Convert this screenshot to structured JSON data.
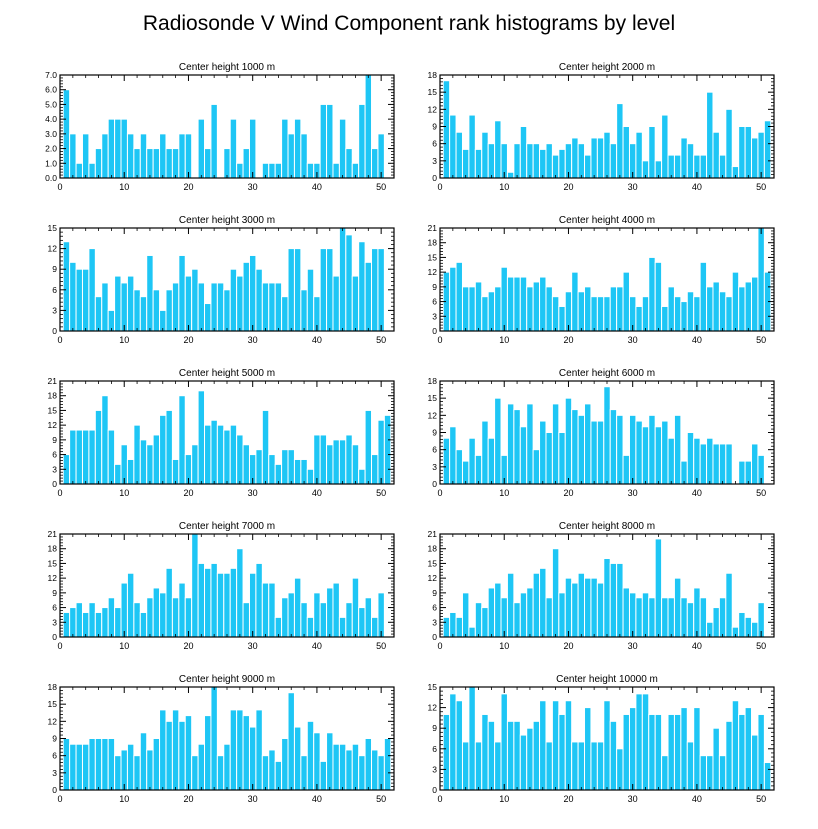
{
  "figure": {
    "title": "Radiosonde V Wind Component rank histograms by level"
  },
  "colors": {
    "bar": "#1ec6f5",
    "bar_edge": "#ffffff",
    "axis": "#000000"
  },
  "chart_data": [
    {
      "type": "bar",
      "title": "Center height 1000 m",
      "xlabel": "",
      "ylabel": "",
      "xlim": [
        0,
        52
      ],
      "ylim": [
        0,
        7
      ],
      "xticks": [
        0,
        10,
        20,
        30,
        40,
        50
      ],
      "yticks": [
        0,
        1,
        2,
        3,
        4,
        5,
        6,
        7
      ],
      "ytick_labels": [
        "0.0",
        "1.0",
        "2.0",
        "3.0",
        "4.0",
        "5.0",
        "6.0",
        "7.0"
      ],
      "categories": [
        1,
        2,
        3,
        4,
        5,
        6,
        7,
        8,
        9,
        10,
        11,
        12,
        13,
        14,
        15,
        16,
        17,
        18,
        19,
        20,
        21,
        22,
        23,
        24,
        25,
        26,
        27,
        28,
        29,
        30,
        31,
        32,
        33,
        34,
        35,
        36,
        37,
        38,
        39,
        40,
        41,
        42,
        43,
        44,
        45,
        46,
        47,
        48,
        49,
        50,
        51
      ],
      "values": [
        6,
        3,
        1,
        3,
        1,
        2,
        3,
        4,
        4,
        4,
        3,
        2,
        3,
        2,
        2,
        3,
        2,
        2,
        3,
        3,
        0,
        4,
        2,
        5,
        0,
        2,
        4,
        1,
        2,
        4,
        0,
        1,
        1,
        1,
        4,
        3,
        4,
        3,
        1,
        1,
        5,
        5,
        1,
        4,
        2,
        1,
        5,
        7,
        2,
        3,
        0
      ]
    },
    {
      "type": "bar",
      "title": "Center height 2000 m",
      "xlabel": "",
      "ylabel": "",
      "xlim": [
        0,
        52
      ],
      "ylim": [
        0,
        18
      ],
      "xticks": [
        0,
        10,
        20,
        30,
        40,
        50
      ],
      "yticks": [
        0,
        3,
        6,
        9,
        12,
        15,
        18
      ],
      "ytick_labels": [
        "0",
        "3",
        "6",
        "9",
        "12",
        "15",
        "18"
      ],
      "categories": [
        1,
        2,
        3,
        4,
        5,
        6,
        7,
        8,
        9,
        10,
        11,
        12,
        13,
        14,
        15,
        16,
        17,
        18,
        19,
        20,
        21,
        22,
        23,
        24,
        25,
        26,
        27,
        28,
        29,
        30,
        31,
        32,
        33,
        34,
        35,
        36,
        37,
        38,
        39,
        40,
        41,
        42,
        43,
        44,
        45,
        46,
        47,
        48,
        49,
        50,
        51
      ],
      "values": [
        17,
        11,
        8,
        5,
        11,
        5,
        8,
        6,
        10,
        6,
        1,
        6,
        9,
        6,
        6,
        5,
        6,
        4,
        5,
        6,
        7,
        6,
        4,
        7,
        7,
        8,
        6,
        13,
        9,
        6,
        8,
        3,
        9,
        3,
        11,
        4,
        4,
        7,
        6,
        4,
        4,
        15,
        8,
        4,
        12,
        2,
        9,
        9,
        7,
        8,
        10
      ]
    },
    {
      "type": "bar",
      "title": "Center height 3000 m",
      "xlabel": "",
      "ylabel": "",
      "xlim": [
        0,
        52
      ],
      "ylim": [
        0,
        15
      ],
      "xticks": [
        0,
        10,
        20,
        30,
        40,
        50
      ],
      "yticks": [
        0,
        3,
        6,
        9,
        12,
        15
      ],
      "ytick_labels": [
        "0",
        "3",
        "6",
        "9",
        "12",
        "15"
      ],
      "categories": [
        1,
        2,
        3,
        4,
        5,
        6,
        7,
        8,
        9,
        10,
        11,
        12,
        13,
        14,
        15,
        16,
        17,
        18,
        19,
        20,
        21,
        22,
        23,
        24,
        25,
        26,
        27,
        28,
        29,
        30,
        31,
        32,
        33,
        34,
        35,
        36,
        37,
        38,
        39,
        40,
        41,
        42,
        43,
        44,
        45,
        46,
        47,
        48,
        49,
        50,
        51
      ],
      "values": [
        13,
        10,
        9,
        9,
        12,
        5,
        7,
        3,
        8,
        7,
        8,
        6,
        5,
        11,
        6,
        3,
        6,
        7,
        11,
        8,
        9,
        7,
        4,
        7,
        7,
        6,
        9,
        8,
        10,
        11,
        9,
        7,
        7,
        7,
        5,
        12,
        12,
        6,
        9,
        5,
        12,
        12,
        8,
        15,
        14,
        8,
        13,
        10,
        12,
        12,
        0
      ]
    },
    {
      "type": "bar",
      "title": "Center height 4000 m",
      "xlabel": "",
      "ylabel": "",
      "xlim": [
        0,
        52
      ],
      "ylim": [
        0,
        21
      ],
      "xticks": [
        0,
        10,
        20,
        30,
        40,
        50
      ],
      "yticks": [
        0,
        3,
        6,
        9,
        12,
        15,
        18,
        21
      ],
      "ytick_labels": [
        "0",
        "3",
        "6",
        "9",
        "12",
        "15",
        "18",
        "21"
      ],
      "categories": [
        1,
        2,
        3,
        4,
        5,
        6,
        7,
        8,
        9,
        10,
        11,
        12,
        13,
        14,
        15,
        16,
        17,
        18,
        19,
        20,
        21,
        22,
        23,
        24,
        25,
        26,
        27,
        28,
        29,
        30,
        31,
        32,
        33,
        34,
        35,
        36,
        37,
        38,
        39,
        40,
        41,
        42,
        43,
        44,
        45,
        46,
        47,
        48,
        49,
        50,
        51
      ],
      "values": [
        12,
        13,
        14,
        9,
        9,
        10,
        7,
        8,
        9,
        13,
        11,
        11,
        11,
        9,
        10,
        11,
        9,
        7,
        5,
        8,
        12,
        8,
        9,
        7,
        7,
        7,
        9,
        9,
        12,
        7,
        5,
        7,
        15,
        14,
        5,
        9,
        7,
        6,
        8,
        7,
        14,
        9,
        10,
        8,
        7,
        12,
        9,
        10,
        11,
        21,
        12
      ]
    },
    {
      "type": "bar",
      "title": "Center height 5000 m",
      "xlabel": "",
      "ylabel": "",
      "xlim": [
        0,
        52
      ],
      "ylim": [
        0,
        21
      ],
      "xticks": [
        0,
        10,
        20,
        30,
        40,
        50
      ],
      "yticks": [
        0,
        3,
        6,
        9,
        12,
        15,
        18,
        21
      ],
      "ytick_labels": [
        "0",
        "3",
        "6",
        "9",
        "12",
        "15",
        "18",
        "21"
      ],
      "categories": [
        1,
        2,
        3,
        4,
        5,
        6,
        7,
        8,
        9,
        10,
        11,
        12,
        13,
        14,
        15,
        16,
        17,
        18,
        19,
        20,
        21,
        22,
        23,
        24,
        25,
        26,
        27,
        28,
        29,
        30,
        31,
        32,
        33,
        34,
        35,
        36,
        37,
        38,
        39,
        40,
        41,
        42,
        43,
        44,
        45,
        46,
        47,
        48,
        49,
        50,
        51
      ],
      "values": [
        6,
        11,
        11,
        11,
        11,
        15,
        18,
        11,
        4,
        8,
        5,
        12,
        9,
        8,
        10,
        14,
        15,
        5,
        18,
        6,
        8,
        19,
        12,
        13,
        12,
        11,
        12,
        10,
        8,
        6,
        7,
        15,
        6,
        4,
        7,
        7,
        5,
        5,
        3,
        10,
        10,
        8,
        9,
        9,
        10,
        8,
        3,
        15,
        6,
        13,
        14
      ]
    },
    {
      "type": "bar",
      "title": "Center height 6000 m",
      "xlabel": "",
      "ylabel": "",
      "xlim": [
        0,
        52
      ],
      "ylim": [
        0,
        18
      ],
      "xticks": [
        0,
        10,
        20,
        30,
        40,
        50
      ],
      "yticks": [
        0,
        3,
        6,
        9,
        12,
        15,
        18
      ],
      "ytick_labels": [
        "0",
        "3",
        "6",
        "9",
        "12",
        "15",
        "18"
      ],
      "categories": [
        1,
        2,
        3,
        4,
        5,
        6,
        7,
        8,
        9,
        10,
        11,
        12,
        13,
        14,
        15,
        16,
        17,
        18,
        19,
        20,
        21,
        22,
        23,
        24,
        25,
        26,
        27,
        28,
        29,
        30,
        31,
        32,
        33,
        34,
        35,
        36,
        37,
        38,
        39,
        40,
        41,
        42,
        43,
        44,
        45,
        46,
        47,
        48,
        49,
        50,
        51
      ],
      "values": [
        8,
        10,
        6,
        4,
        8,
        5,
        11,
        8,
        15,
        5,
        14,
        13,
        10,
        14,
        6,
        11,
        9,
        14,
        9,
        15,
        13,
        12,
        14,
        11,
        11,
        17,
        13,
        12,
        5,
        12,
        11,
        10,
        12,
        10,
        11,
        8,
        12,
        4,
        9,
        8,
        7,
        8,
        7,
        7,
        7,
        0,
        4,
        4,
        7,
        5,
        0
      ]
    },
    {
      "type": "bar",
      "title": "Center height 7000 m",
      "xlabel": "",
      "ylabel": "",
      "xlim": [
        0,
        52
      ],
      "ylim": [
        0,
        21
      ],
      "xticks": [
        0,
        10,
        20,
        30,
        40,
        50
      ],
      "yticks": [
        0,
        3,
        6,
        9,
        12,
        15,
        18,
        21
      ],
      "ytick_labels": [
        "0",
        "3",
        "6",
        "9",
        "12",
        "15",
        "18",
        "21"
      ],
      "categories": [
        1,
        2,
        3,
        4,
        5,
        6,
        7,
        8,
        9,
        10,
        11,
        12,
        13,
        14,
        15,
        16,
        17,
        18,
        19,
        20,
        21,
        22,
        23,
        24,
        25,
        26,
        27,
        28,
        29,
        30,
        31,
        32,
        33,
        34,
        35,
        36,
        37,
        38,
        39,
        40,
        41,
        42,
        43,
        44,
        45,
        46,
        47,
        48,
        49,
        50,
        51
      ],
      "values": [
        5,
        6,
        7,
        5,
        7,
        5,
        6,
        8,
        6,
        11,
        13,
        7,
        5,
        8,
        10,
        9,
        14,
        8,
        11,
        8,
        21,
        15,
        14,
        15,
        13,
        13,
        14,
        18,
        7,
        13,
        15,
        11,
        11,
        4,
        8,
        9,
        12,
        7,
        4,
        9,
        7,
        10,
        11,
        4,
        7,
        12,
        6,
        8,
        4,
        9,
        0
      ]
    },
    {
      "type": "bar",
      "title": "Center height 8000 m",
      "xlabel": "",
      "ylabel": "",
      "xlim": [
        0,
        52
      ],
      "ylim": [
        0,
        21
      ],
      "xticks": [
        0,
        10,
        20,
        30,
        40,
        50
      ],
      "yticks": [
        0,
        3,
        6,
        9,
        12,
        15,
        18,
        21
      ],
      "ytick_labels": [
        "0",
        "3",
        "6",
        "9",
        "12",
        "15",
        "18",
        "21"
      ],
      "categories": [
        1,
        2,
        3,
        4,
        5,
        6,
        7,
        8,
        9,
        10,
        11,
        12,
        13,
        14,
        15,
        16,
        17,
        18,
        19,
        20,
        21,
        22,
        23,
        24,
        25,
        26,
        27,
        28,
        29,
        30,
        31,
        32,
        33,
        34,
        35,
        36,
        37,
        38,
        39,
        40,
        41,
        42,
        43,
        44,
        45,
        46,
        47,
        48,
        49,
        50,
        51
      ],
      "values": [
        4,
        5,
        4,
        9,
        2,
        7,
        6,
        10,
        11,
        8,
        13,
        7,
        9,
        10,
        13,
        14,
        8,
        18,
        9,
        12,
        11,
        13,
        12,
        12,
        11,
        16,
        15,
        15,
        10,
        9,
        8,
        9,
        8,
        20,
        8,
        8,
        12,
        8,
        7,
        10,
        8,
        3,
        6,
        8,
        13,
        2,
        5,
        4,
        3,
        7,
        0
      ]
    },
    {
      "type": "bar",
      "title": "Center height 9000 m",
      "xlabel": "",
      "ylabel": "",
      "xlim": [
        0,
        52
      ],
      "ylim": [
        0,
        18
      ],
      "xticks": [
        0,
        10,
        20,
        30,
        40,
        50
      ],
      "yticks": [
        0,
        3,
        6,
        9,
        12,
        15,
        18
      ],
      "ytick_labels": [
        "0",
        "3",
        "6",
        "9",
        "12",
        "15",
        "18"
      ],
      "categories": [
        1,
        2,
        3,
        4,
        5,
        6,
        7,
        8,
        9,
        10,
        11,
        12,
        13,
        14,
        15,
        16,
        17,
        18,
        19,
        20,
        21,
        22,
        23,
        24,
        25,
        26,
        27,
        28,
        29,
        30,
        31,
        32,
        33,
        34,
        35,
        36,
        37,
        38,
        39,
        40,
        41,
        42,
        43,
        44,
        45,
        46,
        47,
        48,
        49,
        50,
        51
      ],
      "values": [
        9,
        8,
        8,
        8,
        9,
        9,
        9,
        9,
        6,
        7,
        8,
        6,
        10,
        7,
        9,
        14,
        12,
        14,
        12,
        13,
        6,
        8,
        13,
        18,
        6,
        8,
        14,
        14,
        13,
        11,
        14,
        6,
        7,
        5,
        9,
        17,
        11,
        6,
        12,
        10,
        5,
        10,
        8,
        8,
        7,
        8,
        6,
        9,
        7,
        6,
        9
      ]
    },
    {
      "type": "bar",
      "title": "Center height 10000 m",
      "xlabel": "",
      "ylabel": "",
      "xlim": [
        0,
        52
      ],
      "ylim": [
        0,
        15
      ],
      "xticks": [
        0,
        10,
        20,
        30,
        40,
        50
      ],
      "yticks": [
        0,
        3,
        6,
        9,
        12,
        15
      ],
      "ytick_labels": [
        "0",
        "3",
        "6",
        "9",
        "12",
        "15"
      ],
      "categories": [
        1,
        2,
        3,
        4,
        5,
        6,
        7,
        8,
        9,
        10,
        11,
        12,
        13,
        14,
        15,
        16,
        17,
        18,
        19,
        20,
        21,
        22,
        23,
        24,
        25,
        26,
        27,
        28,
        29,
        30,
        31,
        32,
        33,
        34,
        35,
        36,
        37,
        38,
        39,
        40,
        41,
        42,
        43,
        44,
        45,
        46,
        47,
        48,
        49,
        50,
        51
      ],
      "values": [
        11,
        14,
        13,
        7,
        15,
        7,
        11,
        10,
        7,
        14,
        10,
        10,
        8,
        9,
        10,
        13,
        7,
        13,
        11,
        13,
        7,
        7,
        12,
        7,
        7,
        13,
        10,
        6,
        11,
        12,
        14,
        14,
        11,
        11,
        5,
        11,
        11,
        12,
        7,
        12,
        5,
        5,
        9,
        5,
        10,
        13,
        11,
        12,
        8,
        11,
        4
      ]
    }
  ]
}
